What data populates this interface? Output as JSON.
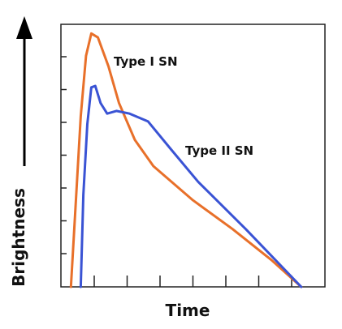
{
  "chart_data": {
    "type": "line",
    "title": "",
    "xlabel": "Time",
    "ylabel": "Brightness",
    "xlim": [
      0,
      10
    ],
    "ylim": [
      0,
      10
    ],
    "grid": false,
    "x_ticks": 7,
    "y_ticks": 7,
    "series": [
      {
        "name": "Type I SN",
        "color": "#e8702a",
        "x": [
          0.38,
          0.55,
          0.75,
          0.95,
          1.15,
          1.4,
          1.8,
          2.2,
          2.8,
          3.5,
          5.0,
          6.5,
          8.0,
          9.1
        ],
        "y": [
          0.0,
          3.0,
          6.5,
          8.8,
          9.65,
          9.5,
          8.4,
          7.0,
          5.6,
          4.6,
          3.3,
          2.2,
          1.0,
          0.0
        ]
      },
      {
        "name": "Type II SN",
        "color": "#3a53d4",
        "x": [
          0.75,
          0.85,
          1.0,
          1.15,
          1.3,
          1.5,
          1.75,
          2.1,
          2.6,
          3.3,
          4.2,
          5.2,
          7.0,
          9.1
        ],
        "y": [
          0.0,
          3.5,
          6.2,
          7.6,
          7.65,
          7.0,
          6.6,
          6.7,
          6.6,
          6.3,
          5.2,
          4.0,
          2.2,
          0.0
        ]
      }
    ]
  }
}
